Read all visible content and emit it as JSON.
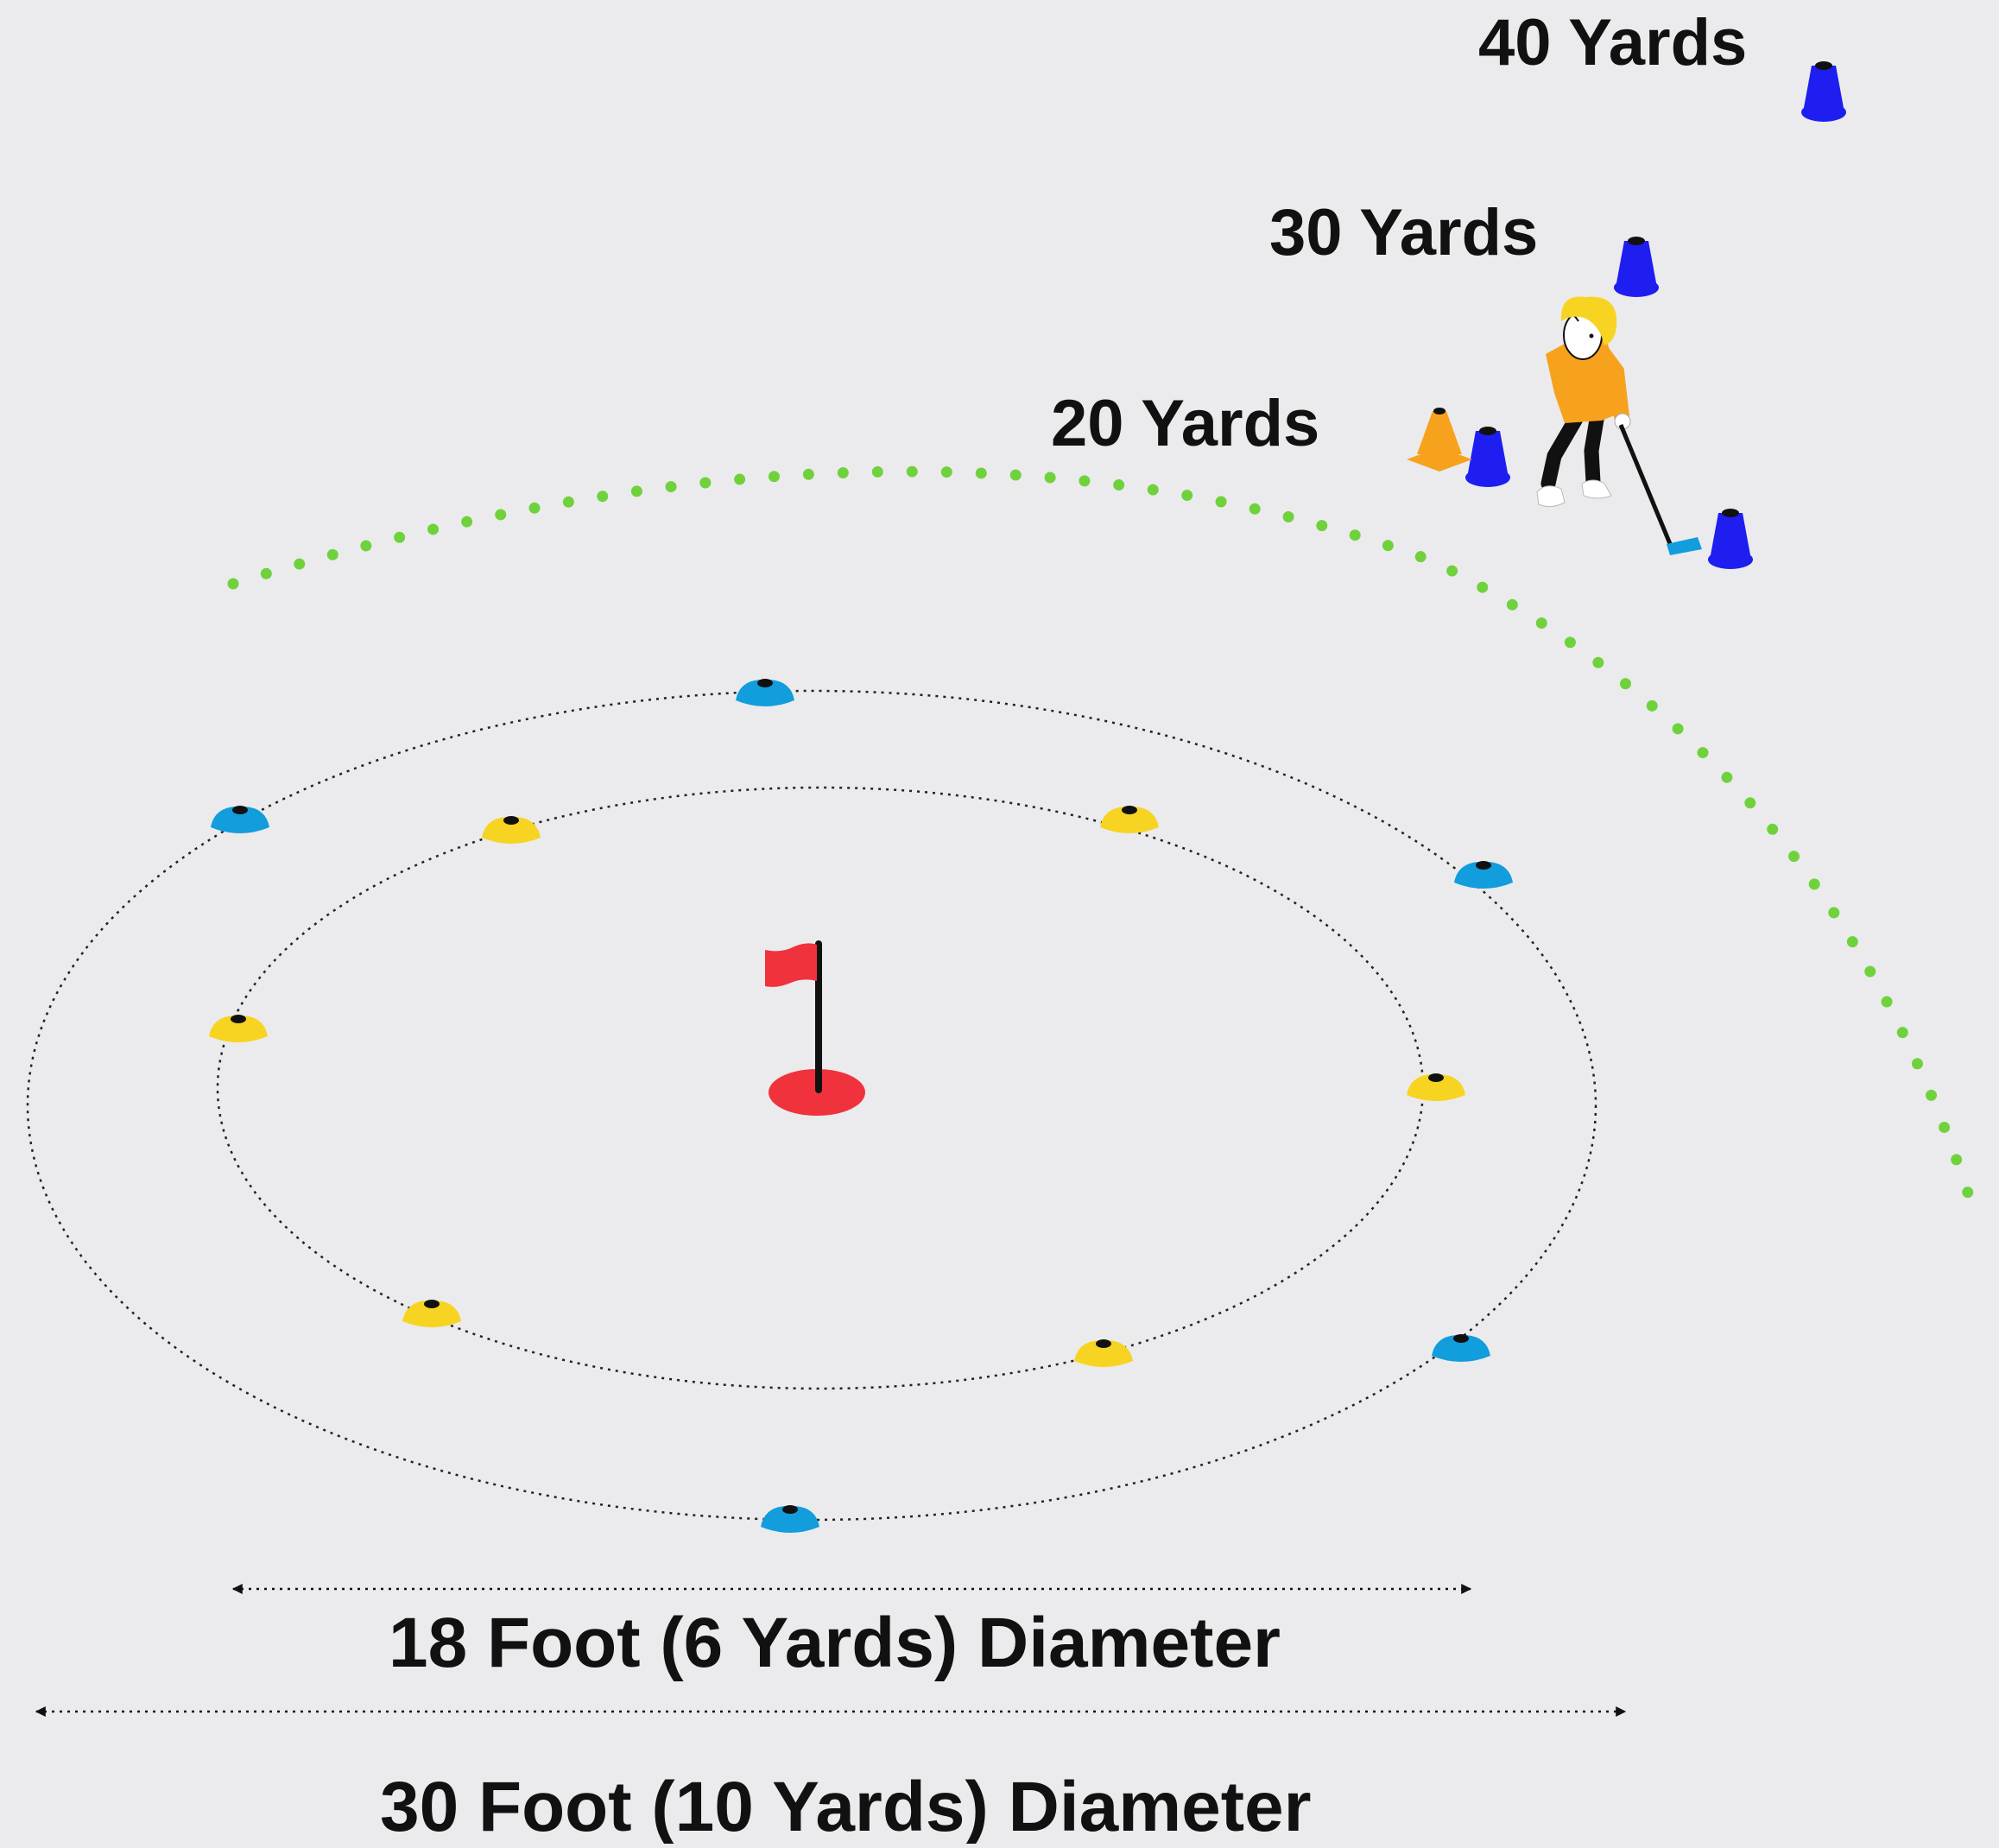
{
  "labels": {
    "yards_40": "40 Yards",
    "yards_30": "30 Yards",
    "yards_20": "20 Yards",
    "inner_diameter": "18 Foot (6 Yards) Diameter",
    "outer_diameter": "30 Foot (10 Yards) Diameter"
  },
  "colors": {
    "background": "#ebebed",
    "yellow_marker": "#f7d422",
    "blue_marker": "#129ddc",
    "distance_cone": "#1e1ef0",
    "orange_cone": "#f7a21d",
    "flag_red": "#f0323c",
    "trajectory_green": "#6fd23c",
    "golfer_shirt": "#f7a21d",
    "golfer_hair": "#f7d422"
  },
  "icons": {
    "flag": "golf-flag-icon",
    "hole": "golf-hole-icon",
    "golfer": "golfer-figure-icon",
    "marker": "disc-cone-marker-icon",
    "cone": "tall-cone-icon"
  }
}
